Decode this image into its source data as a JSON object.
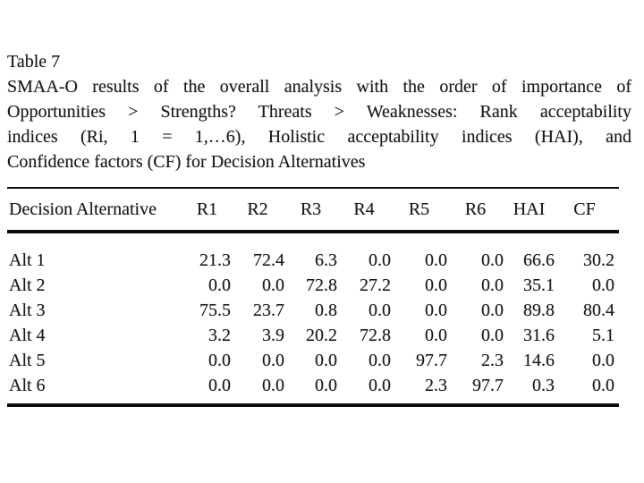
{
  "page": {
    "background": "#ffffff",
    "text_color": "#1a1a1a",
    "rule_color": "#0c0c0c"
  },
  "caption": {
    "lines": [
      "Table 7",
      "SMAA-O results of the overall analysis with the order of importance of",
      "Opportunities > Strengths? Threats > Weaknesses: Rank acceptability",
      "indices (Ri, 1 = 1,…6), Holistic acceptability indices (HAI), and",
      "Confidence factors (CF) for Decision Alternatives"
    ]
  },
  "table": {
    "columns": [
      "Decision Alternative",
      "R1",
      "R2",
      "R3",
      "R4",
      "R5",
      "R6",
      "HAI",
      "CF"
    ],
    "rows": [
      {
        "label": "Alt 1",
        "values": [
          "21.3",
          "72.4",
          "6.3",
          "0.0",
          "0.0",
          "0.0",
          "66.6",
          "30.2"
        ]
      },
      {
        "label": "Alt 2",
        "values": [
          "0.0",
          "0.0",
          "72.8",
          "27.2",
          "0.0",
          "0.0",
          "35.1",
          "0.0"
        ]
      },
      {
        "label": "Alt 3",
        "values": [
          "75.5",
          "23.7",
          "0.8",
          "0.0",
          "0.0",
          "0.0",
          "89.8",
          "80.4"
        ]
      },
      {
        "label": "Alt 4",
        "values": [
          "3.2",
          "3.9",
          "20.2",
          "72.8",
          "0.0",
          "0.0",
          "31.6",
          "5.1"
        ]
      },
      {
        "label": "Alt 5",
        "values": [
          "0.0",
          "0.0",
          "0.0",
          "0.0",
          "97.7",
          "2.3",
          "14.6",
          "0.0"
        ]
      },
      {
        "label": "Alt 6",
        "values": [
          "0.0",
          "0.0",
          "0.0",
          "0.0",
          "2.3",
          "97.7",
          "0.3",
          "0.0"
        ]
      }
    ]
  }
}
